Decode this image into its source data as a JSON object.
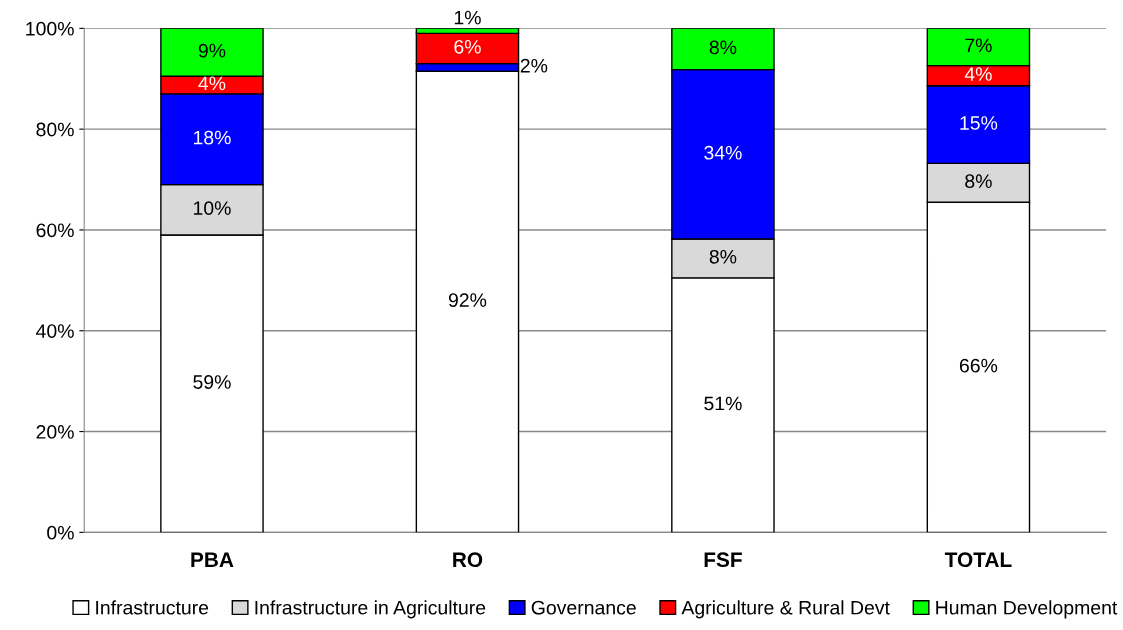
{
  "chart_data": {
    "type": "bar",
    "stacked": true,
    "categories": [
      "PBA",
      "RO",
      "FSF",
      "TOTAL"
    ],
    "series": [
      {
        "name": "Infrastructure",
        "color": "#ffffff",
        "values": [
          59,
          91.5,
          50.5,
          65.5
        ],
        "value_labels": [
          "59%",
          "92%",
          "51%",
          "66%"
        ]
      },
      {
        "name": "Infrastructure in Agriculture",
        "color": "#d9d9d9",
        "values": [
          10,
          null,
          7.7,
          7.7
        ],
        "value_labels": [
          "10%",
          null,
          "8%",
          "8%"
        ]
      },
      {
        "name": "Governance",
        "color": "#0000ff",
        "values": [
          18,
          1.5,
          33.6,
          15.4
        ],
        "value_labels": [
          "18%",
          "2%",
          "34%",
          "15%"
        ]
      },
      {
        "name": "Agriculture & Rural Devt",
        "color": "#ff0000",
        "values": [
          3.5,
          6,
          null,
          4
        ],
        "value_labels": [
          "4%",
          "6%",
          null,
          "4%"
        ]
      },
      {
        "name": "Human Development",
        "color": "#00ff00",
        "values": [
          9.5,
          1,
          8.2,
          7.4
        ],
        "value_labels": [
          "9%",
          "1%",
          "8%",
          "7%"
        ]
      }
    ],
    "ylim": [
      0,
      100
    ],
    "yticks": [
      {
        "value": 0,
        "label": "0%"
      },
      {
        "value": 20,
        "label": "20%"
      },
      {
        "value": 40,
        "label": "40%"
      },
      {
        "value": 60,
        "label": "60%"
      },
      {
        "value": 80,
        "label": "80%"
      },
      {
        "value": 100,
        "label": "100%"
      }
    ],
    "grid": "y",
    "legend": "bottom"
  }
}
